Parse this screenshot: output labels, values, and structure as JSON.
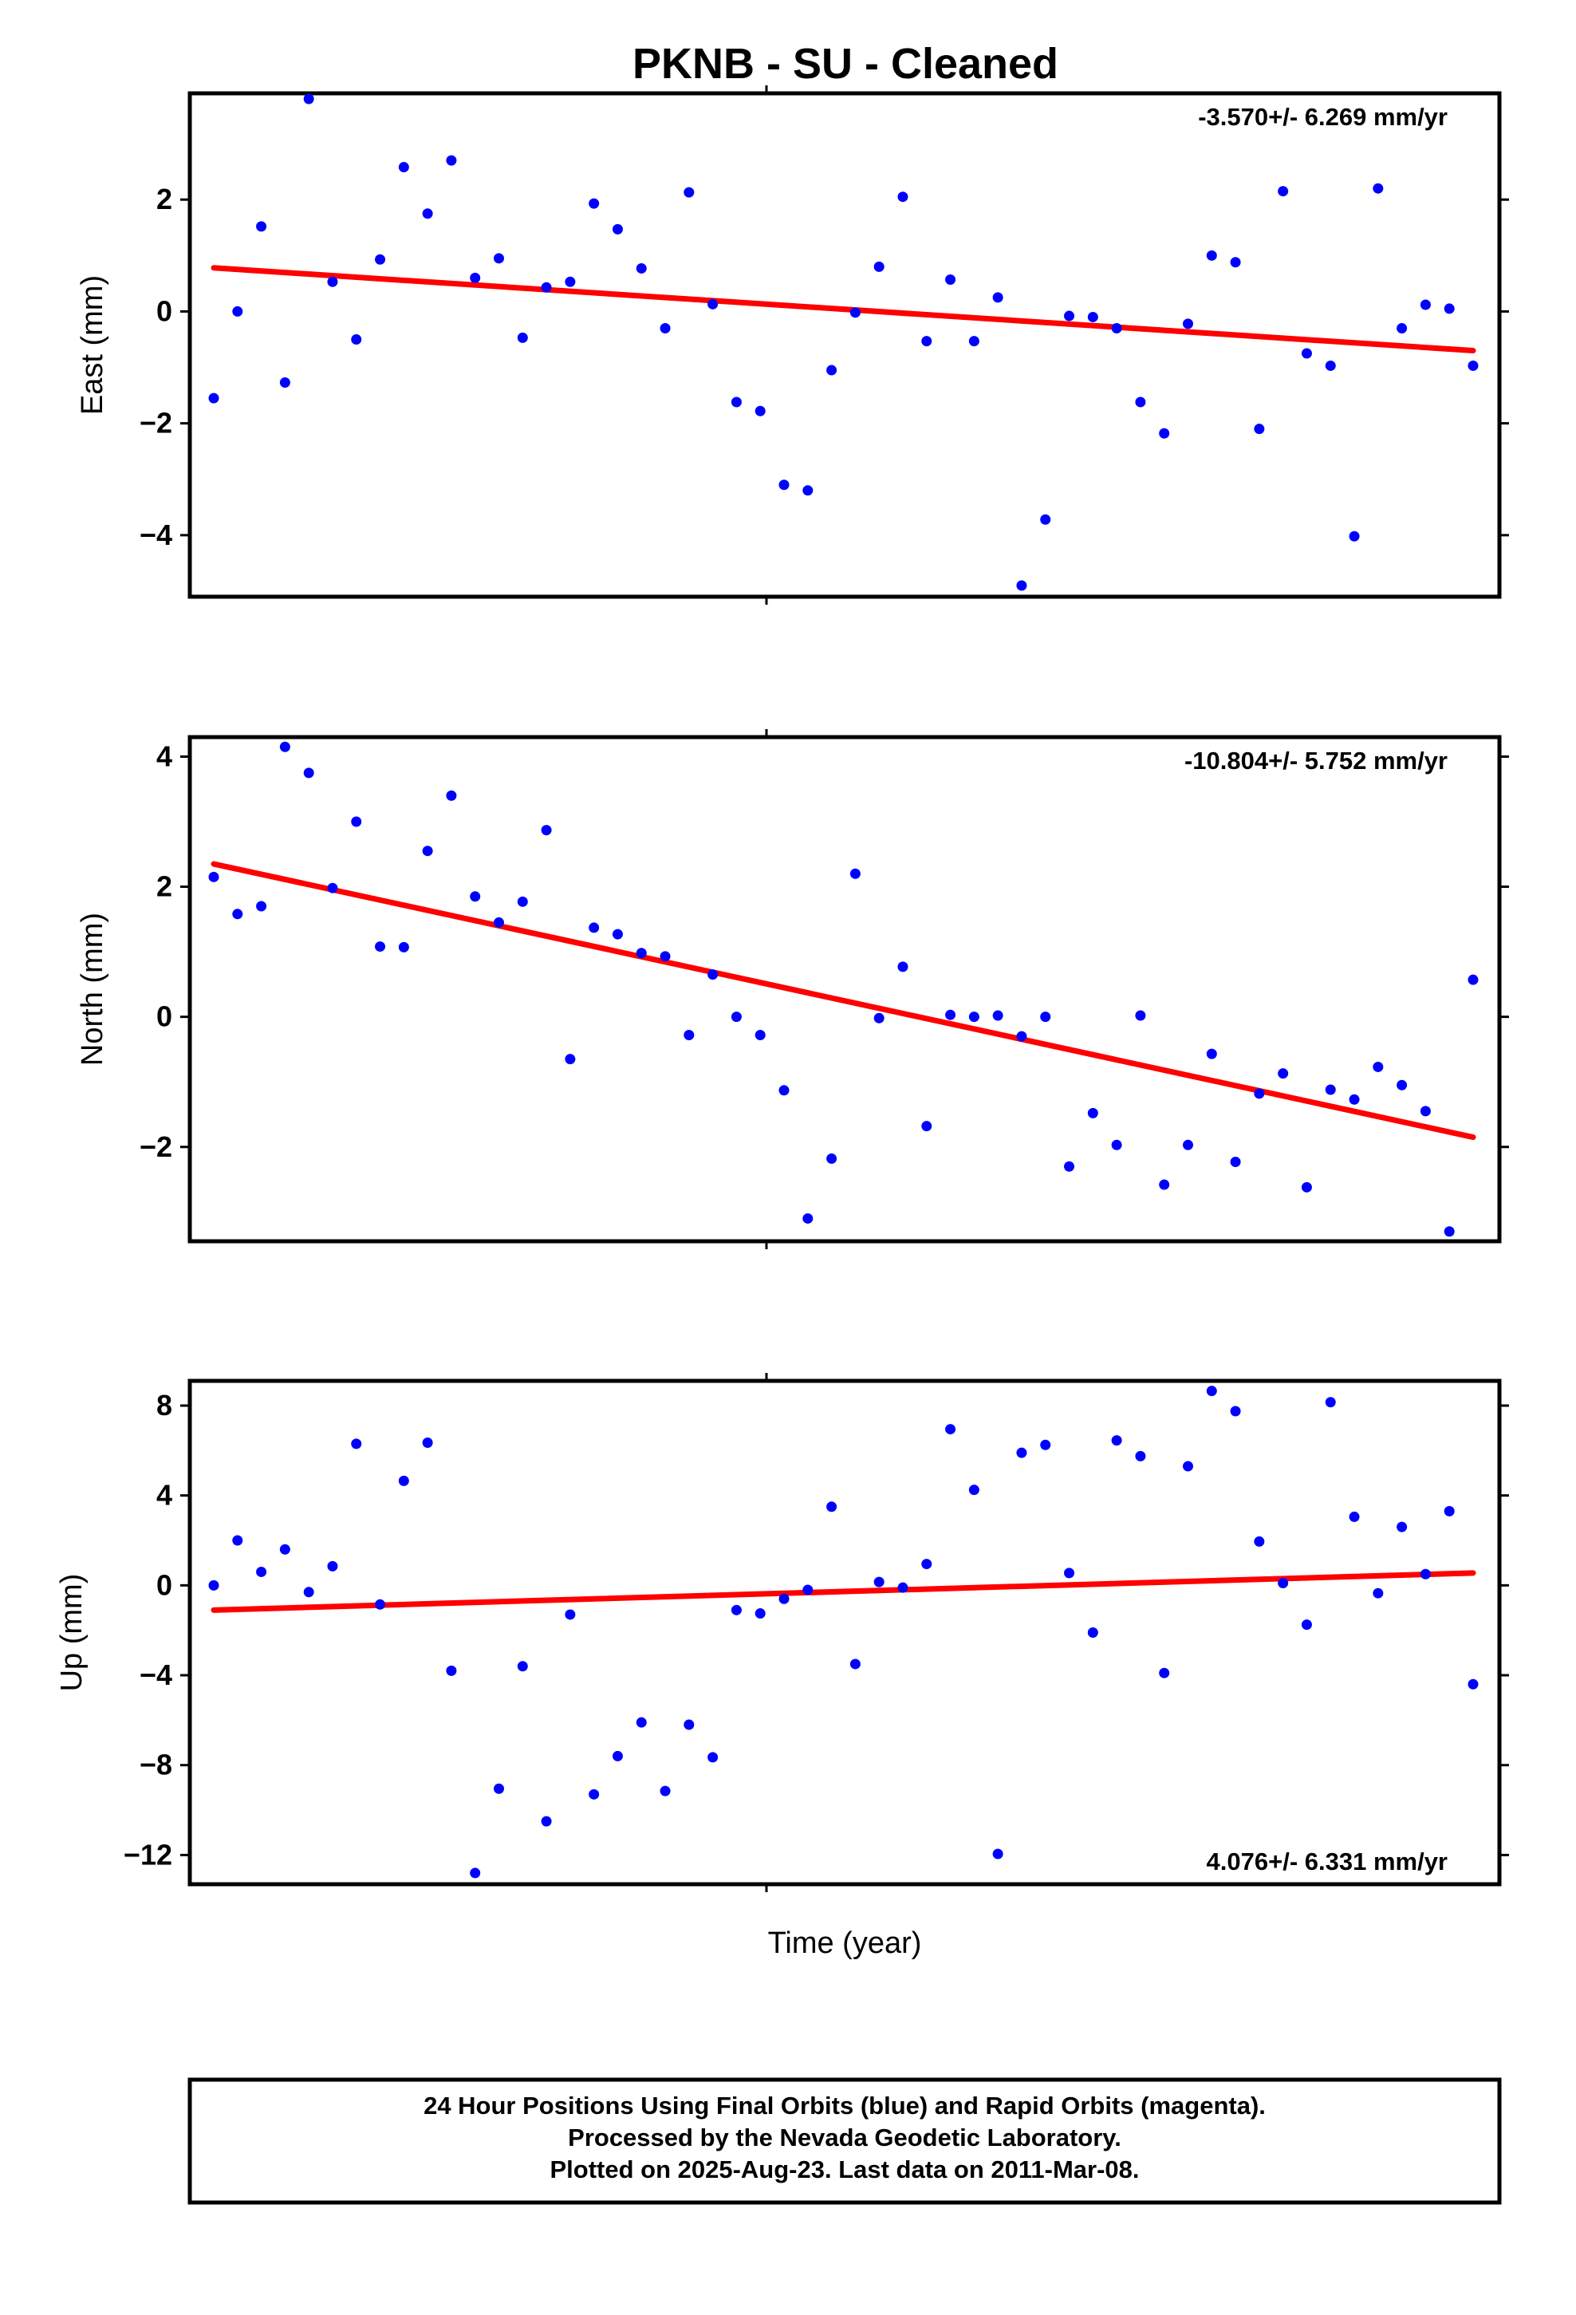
{
  "title": "PKNB  - SU - Cleaned",
  "xlabel": "Time (year)",
  "footer": {
    "line1": "24 Hour Positions Using Final Orbits (blue) and Rapid Orbits (magenta).",
    "line2": "Processed by the Nevada Geodetic Laboratory.",
    "line3": "Plotted on 2025-Aug-23. Last data on 2011-Mar-08."
  },
  "colors": {
    "points": "#0000ff",
    "fit": "#ff0000",
    "frame": "#000000"
  },
  "chart_data": [
    {
      "type": "scatter",
      "ylabel": "East (mm)",
      "rate_label": "-3.570+/- 6.269 mm/yr",
      "rate_position": "top-right",
      "ylim": [
        -5.1,
        3.9
      ],
      "yticks": [
        2,
        0,
        -2,
        -4
      ],
      "ytick_labels": [
        "2",
        "0",
        "−2",
        "−4"
      ],
      "grid": false,
      "values": [
        -1.55,
        0.0,
        1.52,
        -1.27,
        3.8,
        0.53,
        -0.5,
        0.93,
        2.58,
        1.75,
        2.7,
        0.6,
        0.95,
        -0.47,
        0.43,
        0.53,
        1.93,
        1.47,
        0.77,
        -0.3,
        2.13,
        0.13,
        -1.62,
        -1.78,
        -3.1,
        -3.2,
        -1.05,
        -0.02,
        0.8,
        2.05,
        -0.53,
        0.57,
        -0.53,
        0.25,
        -4.9,
        -3.72,
        -0.08,
        -0.1,
        -0.3,
        -1.62,
        -2.18,
        -0.22,
        1.0,
        0.88,
        -2.1,
        2.15,
        -0.75,
        -0.97,
        -4.02,
        2.2,
        -0.3,
        0.12,
        0.05,
        -0.97
      ],
      "fit": [
        0.78,
        -0.7
      ]
    },
    {
      "type": "scatter",
      "ylabel": "North (mm)",
      "rate_label": "-10.804+/- 5.752 mm/yr",
      "rate_position": "top-right",
      "ylim": [
        -3.45,
        4.3
      ],
      "yticks": [
        4,
        2,
        0,
        -2
      ],
      "ytick_labels": [
        "4",
        "2",
        "0",
        "−2"
      ],
      "grid": false,
      "values": [
        2.15,
        1.58,
        1.7,
        4.15,
        3.75,
        1.98,
        3.0,
        1.08,
        1.07,
        2.55,
        3.4,
        1.85,
        1.45,
        1.77,
        2.87,
        -0.65,
        1.37,
        1.27,
        0.98,
        0.93,
        -0.28,
        0.65,
        0.0,
        -0.28,
        -1.13,
        -3.1,
        -2.18,
        2.2,
        -0.02,
        0.77,
        -1.68,
        0.03,
        0.0,
        0.02,
        -0.3,
        0.0,
        -2.3,
        -1.48,
        -1.97,
        0.02,
        -2.58,
        -1.97,
        -0.57,
        -2.23,
        -1.18,
        -0.87,
        -2.62,
        -1.12,
        -1.27,
        -0.77,
        -1.05,
        -1.45,
        -3.3,
        0.57
      ],
      "fit": [
        2.35,
        -1.85
      ]
    },
    {
      "type": "scatter",
      "ylabel": "Up (mm)",
      "rate_label": "4.076+/- 6.331 mm/yr",
      "rate_position": "bottom-right",
      "ylim": [
        -13.3,
        9.1
      ],
      "yticks": [
        8,
        4,
        0,
        -4,
        -8,
        -12
      ],
      "ytick_labels": [
        "8",
        "4",
        "0",
        "−4",
        "−8",
        "−12"
      ],
      "grid": false,
      "values": [
        0.0,
        2.0,
        0.6,
        1.6,
        -0.3,
        0.85,
        6.3,
        -0.85,
        4.65,
        6.35,
        -3.8,
        -12.8,
        -9.05,
        -3.6,
        -10.5,
        -1.3,
        -9.3,
        -7.6,
        -6.1,
        -9.15,
        -6.2,
        -7.65,
        -1.1,
        -1.25,
        -0.6,
        -0.2,
        3.5,
        -3.5,
        0.15,
        -0.1,
        0.95,
        6.95,
        4.25,
        -11.95,
        5.9,
        6.25,
        0.55,
        -2.1,
        6.45,
        5.75,
        -3.9,
        5.3,
        8.65,
        7.75,
        1.95,
        0.1,
        -1.75,
        8.15,
        3.05,
        -0.35,
        2.6,
        0.5,
        3.3,
        -4.4
      ],
      "fit": [
        -1.1,
        0.55
      ]
    }
  ]
}
